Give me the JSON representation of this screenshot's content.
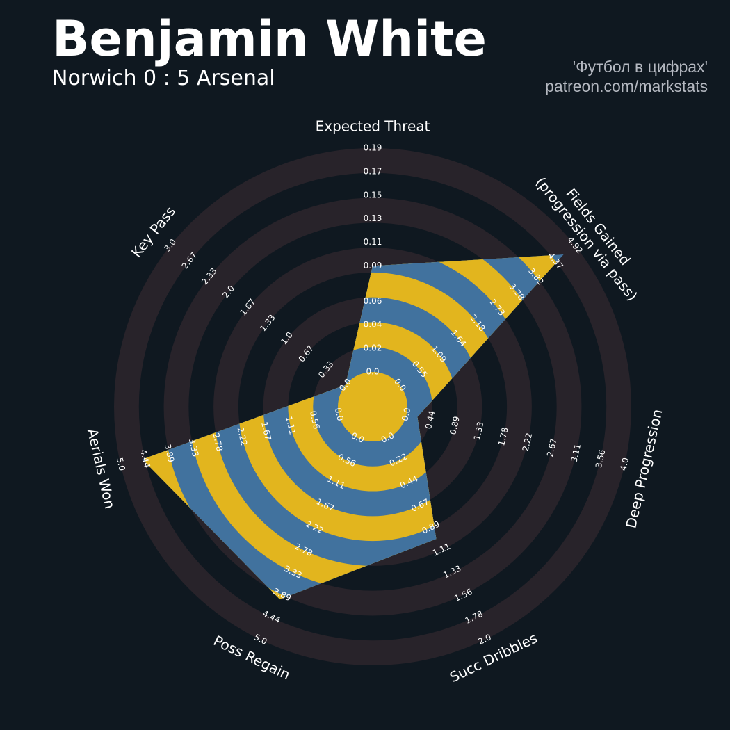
{
  "chart_data": {
    "type": "radar",
    "title": "Benjamin White",
    "subtitle": "Norwich 0 : 5 Arsenal",
    "annotations": [
      "'Футбол в цифрах'",
      "patreon.com/markstats"
    ],
    "params": [
      "Expected Threat",
      "Fields Gained\n(progression via pass)",
      "Deep Progression",
      "Succ Dribbles",
      "Poss Regain",
      "Aerials Won",
      "Key Pass"
    ],
    "values": [
      0.09,
      4.6,
      0.2,
      1.0,
      4.0,
      4.5,
      0.0
    ],
    "rlims": [
      [
        0,
        0.19
      ],
      [
        0,
        4.92
      ],
      [
        0,
        4.0
      ],
      [
        0,
        2.0
      ],
      [
        0,
        5.0
      ],
      [
        0,
        5.0
      ],
      [
        0,
        3.0
      ]
    ],
    "rticks": [
      [
        {
          "value": 0,
          "label": "0.0"
        },
        0.02,
        0.04,
        0.06,
        0.09,
        0.11,
        0.13,
        0.15,
        0.17,
        0.19
      ],
      [
        {
          "value": 0,
          "label": "0.0"
        },
        0.55,
        1.09,
        1.64,
        2.18,
        2.73,
        3.28,
        3.82,
        4.37,
        4.92
      ],
      [
        {
          "value": 0,
          "label": "0.0"
        },
        0.44,
        0.89,
        1.33,
        1.78,
        2.22,
        2.67,
        3.11,
        3.56,
        {
          "value": 4,
          "label": "4.0"
        }
      ],
      [
        {
          "value": 0,
          "label": "0.0"
        },
        0.22,
        0.44,
        0.67,
        0.89,
        1.11,
        1.33,
        1.56,
        1.78,
        {
          "value": 2,
          "label": "2.0"
        }
      ],
      [
        {
          "value": 0,
          "label": "0.0"
        },
        0.56,
        1.11,
        1.67,
        2.22,
        2.78,
        3.33,
        3.89,
        4.44,
        {
          "value": 5,
          "label": "5.0"
        }
      ],
      [
        {
          "value": 0,
          "label": "0.0"
        },
        0.56,
        1.11,
        1.67,
        2.22,
        2.78,
        3.33,
        3.89,
        4.44,
        {
          "value": 5,
          "label": "5.0"
        }
      ],
      [
        {
          "value": 0,
          "label": "0.0"
        },
        0.33,
        0.67,
        {
          "value": 1,
          "label": "1.0"
        },
        1.33,
        1.67,
        {
          "value": 2,
          "label": "2.0"
        },
        2.33,
        2.67,
        {
          "value": 3,
          "label": "3.0"
        }
      ]
    ],
    "color": "#41729e",
    "highlight_color": "#e2b51e",
    "ring_color": "#28232a"
  }
}
